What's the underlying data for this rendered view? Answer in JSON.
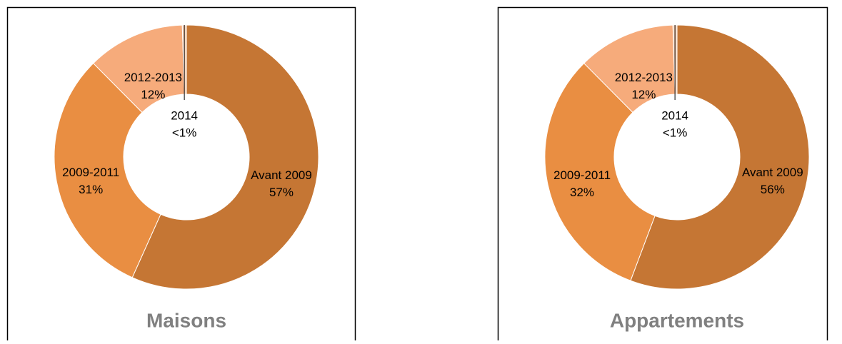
{
  "chart_data": [
    {
      "type": "donut",
      "title": "Maisons",
      "categories": [
        "Avant 2009",
        "2009-2011",
        "2012-2013",
        "2014"
      ],
      "values": [
        57,
        31,
        12,
        0.5
      ],
      "value_labels": [
        "57%",
        "31%",
        "12%",
        "<1%"
      ],
      "colors": [
        "#c57634",
        "#e98e42",
        "#f6ab7b",
        "#fbd3b8"
      ]
    },
    {
      "type": "donut",
      "title": "Appartements",
      "categories": [
        "Avant 2009",
        "2009-2011",
        "2012-2013",
        "2014"
      ],
      "values": [
        56,
        32,
        12,
        0.5
      ],
      "value_labels": [
        "56%",
        "32%",
        "12%",
        "<1%"
      ],
      "colors": [
        "#c57634",
        "#e98e42",
        "#f6ab7b",
        "#fbd3b8"
      ]
    }
  ]
}
